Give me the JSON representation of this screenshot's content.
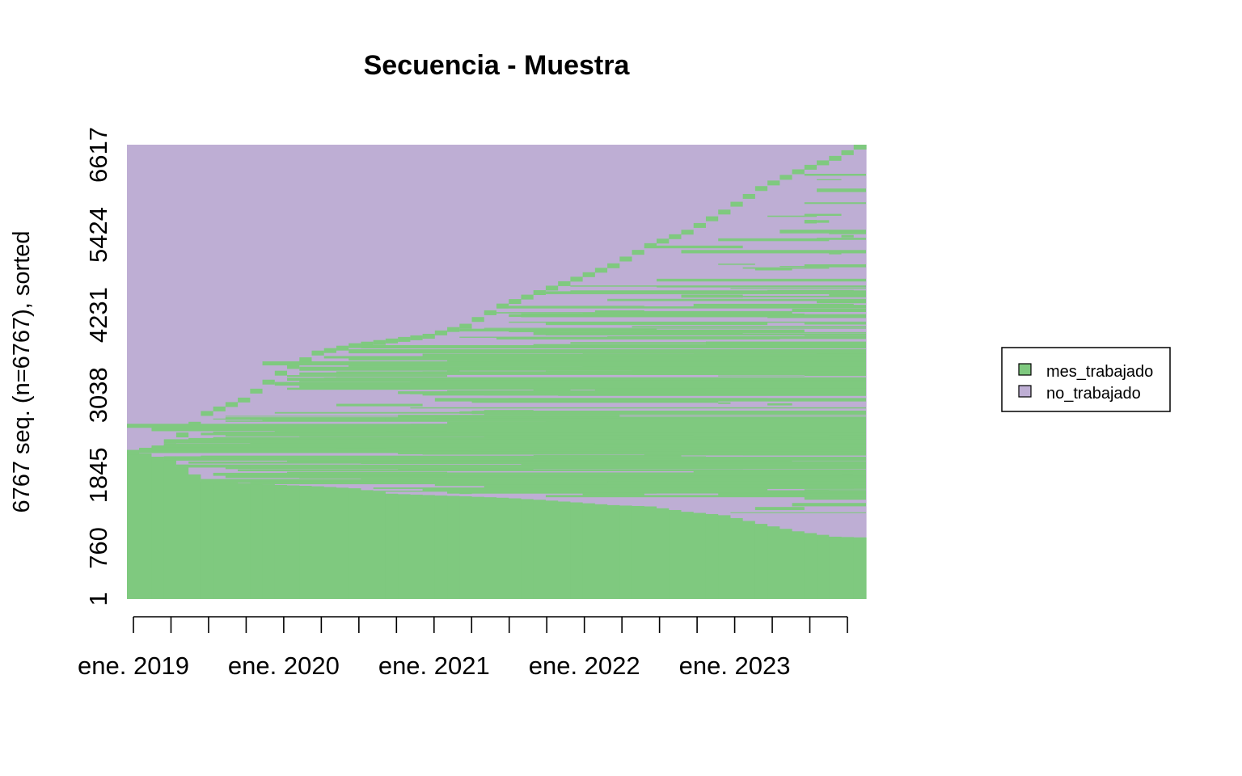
{
  "chart_data": {
    "type": "heatmap",
    "title": "Secuencia - Muestra",
    "xlabel": "",
    "ylabel": "6767 seq. (n=6767), sorted",
    "n_sequences": 6767,
    "n_months": 60,
    "xlim": [
      "2019-01",
      "2023-12"
    ],
    "ylim": [
      1,
      6767
    ],
    "x_tick_labels": [
      "ene. 2019",
      "ene. 2020",
      "ene. 2021",
      "ene. 2022",
      "ene. 2023"
    ],
    "y_tick_labels": [
      "1",
      "760",
      "1845",
      "3038",
      "4231",
      "5424",
      "6617"
    ],
    "y_tick_values": [
      1,
      760,
      1845,
      3038,
      4231,
      5424,
      6617
    ],
    "states": [
      {
        "name": "mes_trabajado",
        "color": "#7FC97F"
      },
      {
        "name": "no_trabajado",
        "color": "#BEAED4"
      }
    ],
    "grid": false,
    "legend_position": "right",
    "boundaries": {
      "description_months": [
        1,
        4,
        7,
        10,
        13,
        16,
        19,
        22,
        25,
        28,
        31,
        34,
        37,
        40,
        43,
        46,
        49,
        52,
        55,
        58,
        60
      ],
      "always_worked_upto": [
        2220,
        2070,
        1750,
        1730,
        1700,
        1680,
        1650,
        1570,
        1550,
        1530,
        1510,
        1480,
        1440,
        1400,
        1380,
        1300,
        1250,
        1120,
        1010,
        930,
        920
      ],
      "started_working_upto": [
        2220,
        2320,
        2800,
        3000,
        3400,
        3700,
        3810,
        3880,
        3950,
        4100,
        4400,
        4600,
        4800,
        5000,
        5300,
        5500,
        5800,
        6150,
        6400,
        6600,
        6767
      ]
    }
  }
}
